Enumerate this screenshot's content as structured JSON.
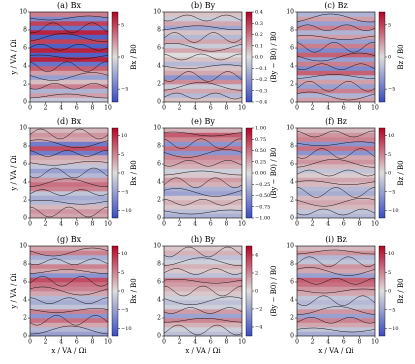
{
  "chart_data": [
    {
      "type": "heatmap",
      "title": "(a) Bx",
      "ylabel": "y / VA / Ωi",
      "colorbar_label": "Bx / B0",
      "colormap": "coolwarm",
      "xlim": [
        0,
        10
      ],
      "xticks": [
        0,
        2,
        4,
        6,
        8,
        10
      ],
      "ylim": [
        0,
        10
      ],
      "yticks": [
        0,
        2,
        4,
        6,
        8,
        10
      ],
      "y": [
        0.25,
        0.75,
        1.25,
        1.75,
        2.25,
        2.75,
        3.25,
        3.75,
        4.25,
        4.75,
        5.25,
        5.75,
        6.25,
        6.75,
        7.25,
        7.75,
        8.25,
        8.75,
        9.25,
        9.75
      ],
      "values": [
        -1,
        2,
        -2,
        3,
        1,
        -3,
        2,
        4,
        -5,
        6,
        -6,
        6,
        -6,
        5,
        -6,
        6,
        -5,
        5,
        -4,
        3
      ],
      "zlim": [
        -7,
        7
      ],
      "zticks": [
        5,
        0,
        {
          "value": -5,
          "label": "−5"
        }
      ]
    },
    {
      "type": "heatmap",
      "title": "(b) By",
      "colorbar_label": "(By − B0) / B0",
      "colormap": "coolwarm",
      "xlim": [
        0,
        10
      ],
      "xticks": [
        0,
        2,
        4,
        6,
        8,
        10
      ],
      "ylim": [
        0,
        10
      ],
      "yticks": [
        0,
        2,
        4,
        6,
        8,
        10
      ],
      "y": [
        0.25,
        0.75,
        1.25,
        1.75,
        2.25,
        2.75,
        3.25,
        3.75,
        4.25,
        4.75,
        5.25,
        5.75,
        6.25,
        6.75,
        7.25,
        7.75,
        8.25,
        8.75,
        9.25,
        9.75
      ],
      "values": [
        0.05,
        -0.1,
        0.1,
        -0.05,
        0.15,
        -0.2,
        0.1,
        0.05,
        -0.1,
        0.05,
        0,
        0.1,
        -0.05,
        0.1,
        -0.1,
        0.05,
        -0.15,
        0.1,
        -0.05,
        0.05
      ],
      "zlim": [
        -0.4,
        0.4
      ],
      "zticks": [
        0.4,
        0.3,
        0.2,
        0.1,
        {
          "value": 0,
          "label": "0.0"
        },
        {
          "value": -0.1,
          "label": "−0.1"
        },
        {
          "value": -0.2,
          "label": "−0.2"
        },
        {
          "value": -0.3,
          "label": "−0.3"
        },
        {
          "value": -0.4,
          "label": "−0.4"
        }
      ]
    },
    {
      "type": "heatmap",
      "title": "(c) Bz",
      "colorbar_label": "Bz / B0",
      "colormap": "coolwarm",
      "xlim": [
        0,
        10
      ],
      "xticks": [
        0,
        2,
        4,
        6,
        8,
        10
      ],
      "ylim": [
        0,
        10
      ],
      "yticks": [
        0,
        2,
        4,
        6,
        8,
        10
      ],
      "y": [
        0.25,
        0.75,
        1.25,
        1.75,
        2.25,
        2.75,
        3.25,
        3.75,
        4.25,
        4.75,
        5.25,
        5.75,
        6.25,
        6.75,
        7.25,
        7.75,
        8.25,
        8.75,
        9.25,
        9.75
      ],
      "values": [
        2,
        -2,
        3,
        -3,
        2,
        -2,
        4,
        -4,
        3,
        -3,
        4,
        -4,
        3,
        -3,
        2,
        -2,
        3,
        -3,
        2,
        -2
      ],
      "zlim": [
        -7,
        7
      ],
      "zticks": [
        5,
        0,
        {
          "value": -5,
          "label": "−5"
        }
      ]
    },
    {
      "type": "heatmap",
      "title": "(d) Bx",
      "ylabel": "y / VA / Ωi",
      "colorbar_label": "Bx / B0",
      "colormap": "coolwarm",
      "xlim": [
        0,
        10
      ],
      "xticks": [
        0,
        2,
        4,
        6,
        8,
        10
      ],
      "ylim": [
        0,
        10
      ],
      "yticks": [
        0,
        2,
        4,
        6,
        8,
        10
      ],
      "y": [
        0.25,
        0.75,
        1.25,
        1.75,
        2.25,
        2.75,
        3.25,
        3.75,
        4.25,
        4.75,
        5.25,
        5.75,
        6.25,
        6.75,
        7.25,
        7.75,
        8.25,
        8.75,
        9.25,
        9.75
      ],
      "values": [
        3,
        4,
        2,
        -3,
        -4,
        -2,
        5,
        6,
        4,
        -3,
        -5,
        -2,
        2,
        3,
        -8,
        8,
        -8,
        3,
        4,
        2
      ],
      "zlim": [
        -12,
        12
      ],
      "zticks": [
        10,
        5,
        0,
        {
          "value": -5,
          "label": "−5"
        },
        {
          "value": -10,
          "label": "−10"
        }
      ]
    },
    {
      "type": "heatmap",
      "title": "(e) By",
      "colorbar_label": "(By − B0) / B0",
      "colormap": "coolwarm",
      "xlim": [
        0,
        10
      ],
      "xticks": [
        0,
        2,
        4,
        6,
        8,
        10
      ],
      "ylim": [
        0,
        10
      ],
      "yticks": [
        0,
        2,
        4,
        6,
        8,
        10
      ],
      "y": [
        0.25,
        0.75,
        1.25,
        1.75,
        2.25,
        2.75,
        3.25,
        3.75,
        4.25,
        4.75,
        5.25,
        5.75,
        6.25,
        6.75,
        7.25,
        7.75,
        8.25,
        8.75,
        9.25,
        9.75
      ],
      "values": [
        -0.3,
        -0.2,
        0.1,
        0.2,
        0.1,
        -0.4,
        -0.3,
        0.2,
        0.3,
        0.1,
        -0.1,
        0.2,
        0.3,
        0.4,
        -0.5,
        0.5,
        -0.5,
        0.4,
        0.6,
        0.2
      ],
      "zlim": [
        -1,
        1
      ],
      "zticks": [
        {
          "value": 1,
          "label": "1.00"
        },
        {
          "value": 0.75,
          "label": "0.75"
        },
        {
          "value": 0.5,
          "label": "0.50"
        },
        {
          "value": 0.25,
          "label": "0.25"
        },
        {
          "value": 0,
          "label": "0.00"
        },
        {
          "value": -0.25,
          "label": "−0.25"
        },
        {
          "value": -0.5,
          "label": "−0.50"
        },
        {
          "value": -0.75,
          "label": "−0.75"
        },
        {
          "value": -1,
          "label": "−1.00"
        }
      ]
    },
    {
      "type": "heatmap",
      "title": "(f) Bz",
      "colorbar_label": "Bz / B0",
      "colormap": "coolwarm",
      "xlim": [
        0,
        10
      ],
      "xticks": [
        0,
        2,
        4,
        6,
        8,
        10
      ],
      "ylim": [
        0,
        10
      ],
      "yticks": [
        0,
        2,
        4,
        6,
        8,
        10
      ],
      "y": [
        0.25,
        0.75,
        1.25,
        1.75,
        2.25,
        2.75,
        3.25,
        3.75,
        4.25,
        4.75,
        5.25,
        5.75,
        6.25,
        6.75,
        7.25,
        7.75,
        8.25,
        8.75,
        9.25,
        9.75
      ],
      "values": [
        -3,
        -2,
        2,
        3,
        2,
        -4,
        -3,
        2,
        3,
        1,
        -2,
        2,
        4,
        3,
        -6,
        6,
        -6,
        5,
        4,
        2
      ],
      "zlim": [
        -12,
        12
      ],
      "zticks": [
        10,
        5,
        0,
        {
          "value": -5,
          "label": "−5"
        },
        {
          "value": -10,
          "label": "−10"
        }
      ]
    },
    {
      "type": "heatmap",
      "title": "(g) Bx",
      "xlabel": "x / VA / Ωi",
      "ylabel": "y / VA / Ωi",
      "colorbar_label": "Bx / B0",
      "colormap": "coolwarm",
      "xlim": [
        0,
        10
      ],
      "xticks": [
        0,
        2,
        4,
        6,
        8,
        10
      ],
      "ylim": [
        0,
        10
      ],
      "yticks": [
        0,
        2,
        4,
        6,
        8,
        10
      ],
      "y": [
        0.25,
        0.75,
        1.25,
        1.75,
        2.25,
        2.75,
        3.25,
        3.75,
        4.25,
        4.75,
        5.25,
        5.75,
        6.25,
        6.75,
        7.25,
        7.75,
        8.25,
        8.75,
        9.25,
        9.75
      ],
      "values": [
        -5,
        -3,
        3,
        6,
        -6,
        5,
        -2,
        -4,
        -3,
        3,
        5,
        6,
        8,
        -6,
        3,
        5,
        -2,
        -4,
        5,
        3
      ],
      "zlim": [
        -12,
        12
      ],
      "zticks": [
        10,
        5,
        0,
        {
          "value": -5,
          "label": "−5"
        },
        {
          "value": -10,
          "label": "−10"
        }
      ]
    },
    {
      "type": "heatmap",
      "title": "(h) By",
      "xlabel": "x / VA / Ωi",
      "colorbar_label": "(By − B0) / B0",
      "colormap": "coolwarm",
      "xlim": [
        0,
        10
      ],
      "xticks": [
        0,
        2,
        4,
        6,
        8,
        10
      ],
      "ylim": [
        0,
        10
      ],
      "yticks": [
        0,
        2,
        4,
        6,
        8,
        10
      ],
      "y": [
        0.25,
        0.75,
        1.25,
        1.75,
        2.25,
        2.75,
        3.25,
        3.75,
        4.25,
        4.75,
        5.25,
        5.75,
        6.25,
        6.75,
        7.25,
        7.75,
        8.25,
        8.75,
        9.25,
        9.75
      ],
      "values": [
        -1,
        -0.5,
        1,
        2,
        -2,
        1.5,
        -0.5,
        -1,
        -0.5,
        0.5,
        1,
        1.5,
        2,
        -1,
        0.5,
        1,
        -0.5,
        -1,
        1,
        0.5
      ],
      "zlim": [
        -5,
        5
      ],
      "zticks": [
        4,
        2,
        0,
        {
          "value": -2,
          "label": "−2"
        },
        {
          "value": -4,
          "label": "−4"
        }
      ]
    },
    {
      "type": "heatmap",
      "title": "(i) Bz",
      "xlabel": "x / VA / Ωi",
      "colorbar_label": "Bz / B0",
      "colormap": "coolwarm",
      "xlim": [
        0,
        10
      ],
      "xticks": [
        0,
        2,
        4,
        6,
        8,
        10
      ],
      "ylim": [
        0,
        10
      ],
      "yticks": [
        0,
        2,
        4,
        6,
        8,
        10
      ],
      "y": [
        0.25,
        0.75,
        1.25,
        1.75,
        2.25,
        2.75,
        3.25,
        3.75,
        4.25,
        4.75,
        5.25,
        5.75,
        6.25,
        6.75,
        7.25,
        7.75,
        8.25,
        8.75,
        9.25,
        9.75
      ],
      "values": [
        -4,
        -2,
        3,
        5,
        -5,
        4,
        -2,
        -3,
        -2,
        3,
        4,
        6,
        7,
        -5,
        3,
        4,
        -2,
        -3,
        4,
        2
      ],
      "zlim": [
        -12,
        12
      ],
      "zticks": [
        10,
        5,
        0,
        {
          "value": -5,
          "label": "−5"
        },
        {
          "value": -10,
          "label": "−10"
        }
      ]
    }
  ]
}
